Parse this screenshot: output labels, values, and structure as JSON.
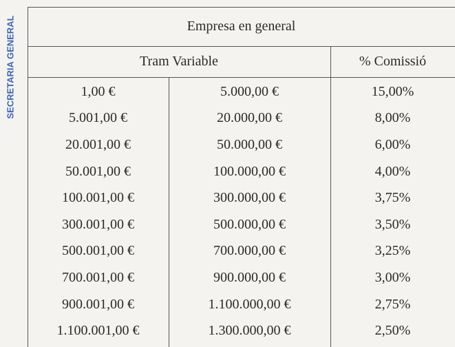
{
  "stamp": "SECRETARIA GENERAL",
  "table": {
    "title": "Empresa en general",
    "header": [
      "Tram Variable",
      "% Comissió"
    ],
    "rows": [
      [
        "1,00 €",
        "5.000,00 €",
        "15,00%"
      ],
      [
        "5.001,00 €",
        "20.000,00 €",
        "8,00%"
      ],
      [
        "20.001,00 €",
        "50.000,00 €",
        "6,00%"
      ],
      [
        "50.001,00 €",
        "100.000,00 €",
        "4,00%"
      ],
      [
        "100.001,00 €",
        "300.000,00 €",
        "3,75%"
      ],
      [
        "300.001,00 €",
        "500.000,00 €",
        "3,50%"
      ],
      [
        "500.001,00 €",
        "700.000,00 €",
        "3,25%"
      ],
      [
        "700.001,00 €",
        "900.000,00 €",
        "3,00%"
      ],
      [
        "900.001,00 €",
        "1.100.000,00 €",
        "2,75%"
      ],
      [
        "1.100.001,00 €",
        "1.300.000,00 €",
        "2,50%"
      ]
    ]
  }
}
